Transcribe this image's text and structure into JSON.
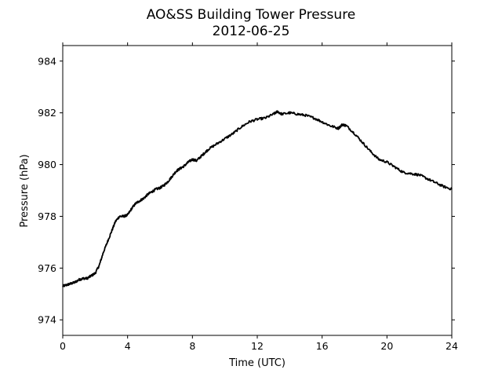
{
  "chart_data": {
    "type": "line",
    "title": "AO&SS Building Tower Pressure",
    "subtitle": "2012-06-25",
    "xlabel": "Time (UTC)",
    "ylabel": "Pressure (hPa)",
    "xlim": [
      0,
      24
    ],
    "ylim": [
      973.4,
      984.6
    ],
    "xticks": [
      0,
      4,
      8,
      12,
      16,
      20,
      24
    ],
    "yticks": [
      974,
      976,
      978,
      980,
      982,
      984
    ],
    "grid": false,
    "series": [
      {
        "color": "#000000",
        "x": [
          0,
          0.25,
          0.5,
          0.75,
          1,
          1.25,
          1.5,
          1.75,
          2,
          2.25,
          2.5,
          2.75,
          3,
          3.25,
          3.5,
          3.75,
          4,
          4.25,
          4.5,
          4.75,
          5,
          5.25,
          5.5,
          5.75,
          6,
          6.25,
          6.5,
          6.75,
          7,
          7.25,
          7.5,
          7.75,
          8,
          8.25,
          8.5,
          8.75,
          9,
          9.5,
          10,
          10.5,
          11,
          11.5,
          12,
          12.5,
          13,
          13.25,
          13.5,
          14,
          14.5,
          15,
          15.5,
          16,
          16.5,
          17,
          17.25,
          17.5,
          18,
          18.5,
          19,
          19.5,
          20,
          20.5,
          21,
          21.5,
          22,
          22.5,
          23,
          23.5,
          24
        ],
        "y": [
          975.3,
          975.35,
          975.4,
          975.45,
          975.55,
          975.6,
          975.6,
          975.7,
          975.8,
          976.1,
          976.6,
          977.0,
          977.4,
          977.8,
          978.0,
          978.0,
          978.05,
          978.3,
          978.5,
          978.6,
          978.7,
          978.85,
          978.95,
          979.05,
          979.1,
          979.2,
          979.35,
          979.55,
          979.75,
          979.85,
          979.95,
          980.1,
          980.2,
          980.15,
          980.3,
          980.45,
          980.6,
          980.8,
          981.0,
          981.2,
          981.45,
          981.65,
          981.75,
          981.8,
          981.95,
          982.05,
          981.95,
          982.0,
          981.95,
          981.9,
          981.8,
          981.65,
          981.5,
          981.4,
          981.55,
          981.5,
          981.2,
          980.85,
          980.5,
          980.2,
          980.1,
          979.9,
          979.7,
          979.65,
          979.6,
          979.45,
          979.3,
          979.15,
          979.05
        ]
      }
    ]
  }
}
